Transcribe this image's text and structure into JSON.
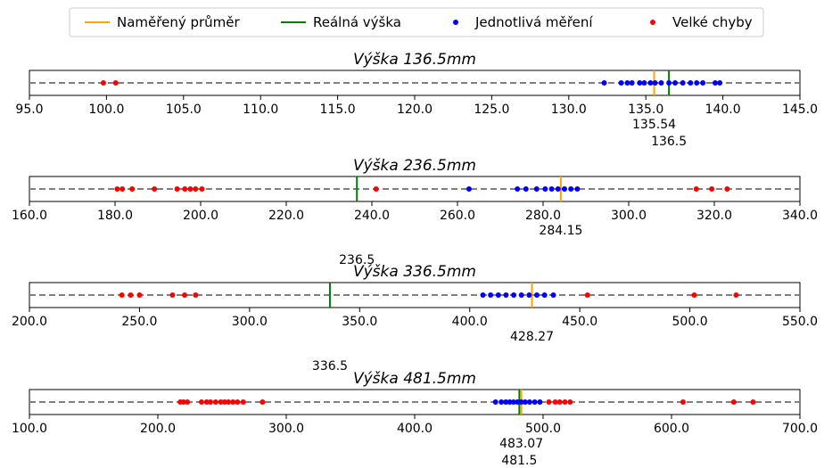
{
  "chart_data": {
    "type": "scatter",
    "legend": {
      "placement": "top-center",
      "entries": [
        {
          "key": "mean",
          "label": "Naměřený průměr",
          "marker": "line",
          "color": "#ffa500"
        },
        {
          "key": "real",
          "label": "Reálná výška",
          "marker": "line",
          "color": "#008000"
        },
        {
          "key": "single",
          "label": "Jednotlivá měření",
          "marker": "dot",
          "color": "#0000ff"
        },
        {
          "key": "errors",
          "label": "Velké chyby",
          "marker": "dot",
          "color": "#ff0000"
        }
      ]
    },
    "colors": {
      "mean": "#ffa500",
      "real": "#008000",
      "single": "#0000ff",
      "errors": "#ff0000",
      "dashed_line": "#808080"
    },
    "panels": [
      {
        "title": "Výška 136.5mm",
        "xlim": [
          95,
          145
        ],
        "ticks": [
          "95.0",
          "100.0",
          "105.0",
          "110.0",
          "115.0",
          "120.0",
          "125.0",
          "130.0",
          "135.0",
          "140.0",
          "145.0"
        ],
        "tick_values": [
          95,
          100,
          105,
          110,
          115,
          120,
          125,
          130,
          135,
          140,
          145
        ],
        "mean": 135.54,
        "mean_label": "135.54",
        "real": 136.5,
        "real_label": "136.5",
        "real_label_position": "below-mean",
        "single": [
          132.3,
          133.4,
          133.8,
          134.1,
          134.6,
          134.9,
          135.3,
          135.6,
          136.0,
          136.5,
          136.9,
          137.4,
          137.9,
          138.3,
          138.7,
          139.5,
          139.8
        ],
        "errors": [
          99.8,
          100.6
        ]
      },
      {
        "title": "Výška 236.5mm",
        "xlim": [
          160,
          340
        ],
        "ticks": [
          "160.0",
          "180.0",
          "200.0",
          "220.0",
          "240.0",
          "260.0",
          "280.0",
          "300.0",
          "320.0",
          "340.0"
        ],
        "tick_values": [
          160,
          180,
          200,
          220,
          240,
          260,
          280,
          300,
          320,
          340
        ],
        "mean": 284.15,
        "mean_label": "284.15",
        "real": 236.5,
        "real_label": "236.5",
        "real_label_position": "below-panel",
        "single": [
          262.7,
          274.0,
          276.0,
          278.5,
          280.5,
          282.0,
          283.5,
          285.0,
          286.5,
          288.0
        ],
        "errors": [
          180.5,
          181.7,
          184.0,
          189.2,
          194.5,
          196.3,
          197.6,
          198.8,
          200.3,
          241.0,
          315.8,
          319.4,
          323.0
        ]
      },
      {
        "title": "Výška 336.5mm",
        "xlim": [
          200,
          550
        ],
        "ticks": [
          "200.0",
          "250.0",
          "300.0",
          "350.0",
          "400.0",
          "450.0",
          "500.0",
          "550.0"
        ],
        "tick_values": [
          200,
          250,
          300,
          350,
          400,
          450,
          500,
          550
        ],
        "mean": 428.27,
        "mean_label": "428.27",
        "real": 336.5,
        "real_label": "336.5",
        "real_label_position": "below-panel",
        "single": [
          406.0,
          409.5,
          413.0,
          416.5,
          420.0,
          423.5,
          427.0,
          430.5,
          434.0,
          438.0
        ],
        "errors": [
          242.0,
          246.0,
          250.0,
          265.0,
          270.5,
          275.5,
          453.5,
          502.0,
          521.0
        ]
      },
      {
        "title": "Výška 481.5mm",
        "xlim": [
          100,
          700
        ],
        "ticks": [
          "100.0",
          "200.0",
          "300.0",
          "400.0",
          "500.0",
          "600.0",
          "700.0"
        ],
        "tick_values": [
          100,
          200,
          300,
          400,
          500,
          600,
          700
        ],
        "mean": 483.07,
        "mean_label": "483.07",
        "real": 481.5,
        "real_label": "481.5",
        "real_label_position": "below-mean",
        "single": [
          463.0,
          467.5,
          471.0,
          474.0,
          477.0,
          480.0,
          483.0,
          486.0,
          489.5,
          493.5,
          497.5
        ],
        "errors": [
          217.5,
          220.0,
          223.0,
          234.0,
          238.0,
          241.0,
          245.0,
          249.0,
          252.0,
          255.0,
          258.5,
          262.0,
          266.5,
          281.5,
          504.5,
          509.5,
          513.0,
          517.0,
          521.0,
          609.0,
          648.5,
          663.5
        ]
      }
    ]
  }
}
